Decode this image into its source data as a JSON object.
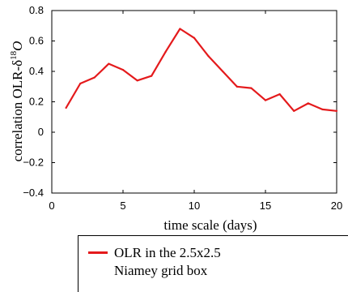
{
  "chart_data": {
    "type": "line",
    "xlabel": "time scale (days)",
    "ylabel": "correlation OLR-δ",
    "ylabel_sup": "18",
    "ylabel_tail": "O",
    "xlim": [
      0,
      20
    ],
    "ylim": [
      -0.4,
      0.8
    ],
    "x_ticks": [
      0,
      5,
      10,
      15,
      20
    ],
    "x_tick_labels": [
      "0",
      "5",
      "10",
      "15",
      "20"
    ],
    "y_ticks": [
      -0.4,
      -0.2,
      0,
      0.2,
      0.4,
      0.6,
      0.8
    ],
    "y_tick_labels": [
      "−0.4",
      "−0.2",
      "0",
      "0.2",
      "0.4",
      "0.6",
      "0.8"
    ],
    "grid": false,
    "legend_position": "bottom",
    "series": [
      {
        "name": "OLR in the 2.5x2.5 Niamey grid box",
        "name_lines": [
          "OLR in the 2.5x2.5",
          "Niamey grid box"
        ],
        "color": "#e41a1c",
        "x": [
          1,
          2,
          3,
          4,
          5,
          6,
          7,
          8,
          9,
          10,
          11,
          12,
          13,
          14,
          15,
          16,
          17,
          18,
          19,
          20
        ],
        "y": [
          0.16,
          0.32,
          0.36,
          0.45,
          0.41,
          0.34,
          0.37,
          0.53,
          0.68,
          0.62,
          0.5,
          0.4,
          0.3,
          0.29,
          0.21,
          0.25,
          0.14,
          0.19,
          0.15,
          0.14
        ]
      }
    ]
  }
}
